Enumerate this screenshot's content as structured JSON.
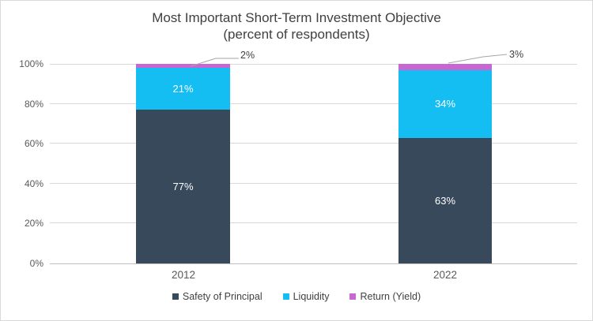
{
  "chart_data": {
    "type": "bar",
    "stacked": true,
    "title": "Most Important Short-Term Investment Objective",
    "subtitle": "(percent of respondents)",
    "categories": [
      "2012",
      "2022"
    ],
    "series": [
      {
        "name": "Safety of Principal",
        "color": "#37495A",
        "values": [
          77,
          63
        ],
        "labels": [
          "77%",
          "63%"
        ],
        "label_position": "inside"
      },
      {
        "name": "Liquidity",
        "color": "#14BDF2",
        "values": [
          21,
          34
        ],
        "labels": [
          "21%",
          "34%"
        ],
        "label_position": "inside"
      },
      {
        "name": "Return (Yield)",
        "color": "#C767D1",
        "values": [
          2,
          3
        ],
        "labels": [
          "2%",
          "3%"
        ],
        "label_position": "callout"
      }
    ],
    "ylim": [
      0,
      100
    ],
    "yticks": [
      "0%",
      "20%",
      "40%",
      "60%",
      "80%",
      "100%"
    ],
    "grid": true,
    "legend_position": "bottom",
    "colors": {
      "title_text": "#404040",
      "axis_text": "#595959",
      "gridline": "#D9D9D9",
      "axis_line": "#BFBFBF",
      "leader_line": "#A6A6A6",
      "background": "#FFFFFF"
    }
  }
}
